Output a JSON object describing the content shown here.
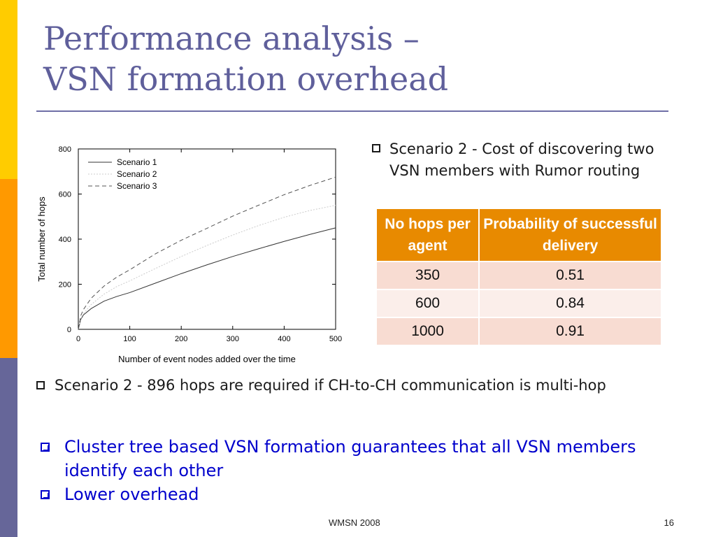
{
  "slide": {
    "title_line1": "Performance analysis –",
    "title_line2": "VSN formation overhead",
    "right_bullet": "Scenario 2 - Cost of discovering two VSN members with Rumor routing",
    "table": {
      "headers": [
        "No hops per agent",
        "Probability of successful delivery"
      ],
      "rows": [
        [
          "350",
          "0.51"
        ],
        [
          "600",
          "0.84"
        ],
        [
          "1000",
          "0.91"
        ]
      ]
    },
    "bullet_scenario2": "Scenario 2 - 896 hops are required if CH-to-CH communication is multi-hop",
    "blue_bullets": [
      "Cluster tree based VSN formation guarantees that all VSN members identify each other",
      "Lower overhead"
    ],
    "footer": "WMSN 2008",
    "page_number": "16",
    "colors": {
      "title": "#5f5f9b",
      "side_bar_top": "#ffcc00",
      "side_bar_mid": "#ff9900",
      "side_bar_bottom": "#666699",
      "table_header": "#e88a00",
      "emphasis_text": "#0000cc"
    }
  },
  "chart_data": {
    "type": "line",
    "xlabel": "Number of event nodes added over the time",
    "ylabel": "Total number of hops",
    "xlim": [
      0,
      500
    ],
    "ylim": [
      0,
      800
    ],
    "xticks": [
      0,
      100,
      200,
      300,
      400,
      500
    ],
    "yticks": [
      0,
      200,
      400,
      600,
      800
    ],
    "legend_position": "top-left",
    "grid": false,
    "x": [
      0,
      5,
      10,
      25,
      50,
      75,
      100,
      150,
      200,
      250,
      300,
      350,
      400,
      450,
      500
    ],
    "series": [
      {
        "name": "Scenario 1",
        "style": "solid",
        "color": "#333333",
        "values": [
          0,
          45,
          64,
          92,
          125,
          146,
          163,
          205,
          247,
          286,
          323,
          357,
          390,
          421,
          450
        ]
      },
      {
        "name": "Scenario 2",
        "style": "dotted",
        "color": "#cccccc",
        "values": [
          0,
          48,
          70,
          110,
          156,
          190,
          215,
          270,
          323,
          372,
          418,
          460,
          497,
          527,
          550
        ]
      },
      {
        "name": "Scenario 3",
        "style": "dashed",
        "color": "#555555",
        "values": [
          0,
          62,
          88,
          138,
          192,
          232,
          264,
          335,
          395,
          448,
          502,
          550,
          597,
          638,
          675
        ]
      }
    ]
  }
}
